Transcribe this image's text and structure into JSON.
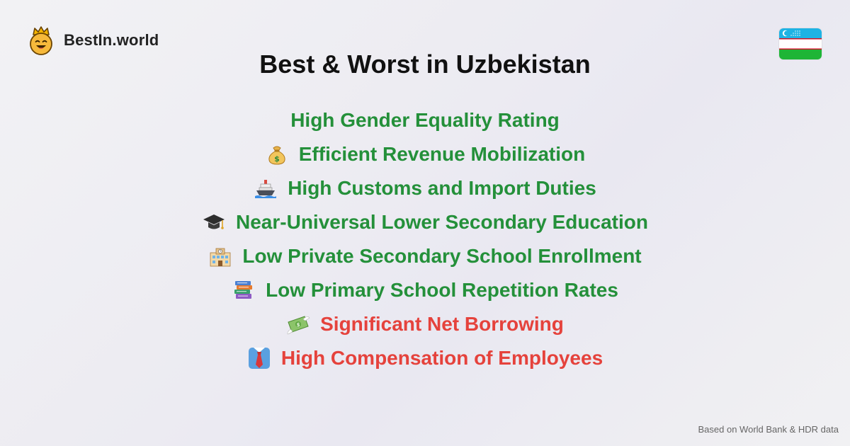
{
  "brand": {
    "name": "BestIn.world",
    "logo_icon": "crowned-smiley-icon"
  },
  "flag": {
    "country": "Uzbekistan",
    "icon": "uzbekistan-flag-icon"
  },
  "title": "Best & Worst in Uzbekistan",
  "items": [
    {
      "label": "High Gender Equality Rating",
      "type": "best",
      "icon": ""
    },
    {
      "label": "Efficient Revenue Mobilization",
      "type": "best",
      "icon": "money-bag-icon"
    },
    {
      "label": "High Customs and Import Duties",
      "type": "best",
      "icon": "ship-icon"
    },
    {
      "label": "Near-Universal Lower Secondary Education",
      "type": "best",
      "icon": "graduation-cap-icon"
    },
    {
      "label": "Low Private Secondary School Enrollment",
      "type": "best",
      "icon": "school-icon"
    },
    {
      "label": "Low Primary School Repetition Rates",
      "type": "best",
      "icon": "books-icon"
    },
    {
      "label": "Significant Net Borrowing",
      "type": "worst",
      "icon": "money-with-wings-icon"
    },
    {
      "label": "High Compensation of Employees",
      "type": "worst",
      "icon": "necktie-icon"
    }
  ],
  "colors": {
    "best": "#24903a",
    "worst": "#e5423c"
  },
  "source": "Based on World Bank & HDR data"
}
